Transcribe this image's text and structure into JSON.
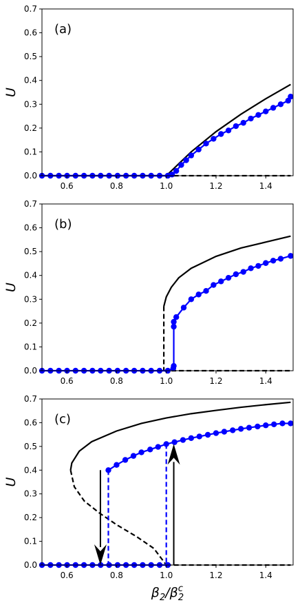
{
  "chart_data": [
    {
      "type": "line",
      "panel_label": "(a)",
      "xlim": [
        0.5,
        1.51
      ],
      "ylim": [
        0,
        0.7
      ],
      "xticks": [
        "0.6",
        "0.8",
        "1.0",
        "1.2",
        "1.4"
      ],
      "yticks": [
        "0.0",
        "0.1",
        "0.2",
        "0.3",
        "0.4",
        "0.5",
        "0.6",
        "0.7"
      ],
      "ylabel": "U",
      "series": [
        {
          "style": "solid",
          "color": "#000000",
          "points": [
            [
              0.5,
              0.0
            ],
            [
              1.0,
              0.0
            ],
            [
              1.05,
              0.05
            ],
            [
              1.1,
              0.1
            ],
            [
              1.2,
              0.185
            ],
            [
              1.3,
              0.258
            ],
            [
              1.4,
              0.323
            ],
            [
              1.5,
              0.383
            ]
          ]
        },
        {
          "style": "dashed",
          "color": "#000000",
          "points": [
            [
              1.0,
              0.0
            ],
            [
              1.5,
              0.0
            ]
          ]
        },
        {
          "style": "markers",
          "color": "#0000ff",
          "points": [
            [
              0.5,
              0.0
            ],
            [
              0.534,
              0.0
            ],
            [
              0.568,
              0.0
            ],
            [
              0.601,
              0.0
            ],
            [
              0.635,
              0.0
            ],
            [
              0.669,
              0.0
            ],
            [
              0.703,
              0.0
            ],
            [
              0.736,
              0.0
            ],
            [
              0.77,
              0.0
            ],
            [
              0.804,
              0.0
            ],
            [
              0.838,
              0.0
            ],
            [
              0.871,
              0.0
            ],
            [
              0.905,
              0.0
            ],
            [
              0.939,
              0.0
            ],
            [
              0.973,
              0.0
            ],
            [
              1.006,
              0.0
            ],
            [
              1.023,
              0.005
            ],
            [
              1.04,
              0.02
            ],
            [
              1.06,
              0.045
            ],
            [
              1.08,
              0.065
            ],
            [
              1.1,
              0.085
            ],
            [
              1.13,
              0.11
            ],
            [
              1.16,
              0.135
            ],
            [
              1.19,
              0.155
            ],
            [
              1.22,
              0.175
            ],
            [
              1.25,
              0.19
            ],
            [
              1.28,
              0.208
            ],
            [
              1.31,
              0.222
            ],
            [
              1.34,
              0.24
            ],
            [
              1.37,
              0.255
            ],
            [
              1.4,
              0.27
            ],
            [
              1.43,
              0.285
            ],
            [
              1.46,
              0.3
            ],
            [
              1.49,
              0.315
            ],
            [
              1.5,
              0.332
            ]
          ]
        }
      ]
    },
    {
      "type": "line",
      "panel_label": "(b)",
      "xlim": [
        0.5,
        1.51
      ],
      "ylim": [
        0,
        0.7
      ],
      "xticks": [
        "0.6",
        "0.8",
        "1.0",
        "1.2",
        "1.4"
      ],
      "yticks": [
        "0.0",
        "0.1",
        "0.2",
        "0.3",
        "0.4",
        "0.5",
        "0.6",
        "0.7"
      ],
      "ylabel": "U",
      "series": [
        {
          "style": "solid",
          "color": "#000000",
          "points": [
            [
              0.99,
              0.27
            ],
            [
              1.0,
              0.31
            ],
            [
              1.02,
              0.35
            ],
            [
              1.05,
              0.39
            ],
            [
              1.1,
              0.43
            ],
            [
              1.2,
              0.48
            ],
            [
              1.3,
              0.515
            ],
            [
              1.4,
              0.54
            ],
            [
              1.5,
              0.565
            ]
          ]
        },
        {
          "style": "dashed",
          "color": "#000000",
          "points": [
            [
              0.99,
              0.27
            ],
            [
              0.99,
              0.0
            ]
          ]
        },
        {
          "style": "dashed",
          "color": "#000000",
          "points": [
            [
              0.99,
              0.0
            ],
            [
              1.5,
              0.0
            ]
          ]
        },
        {
          "style": "markers",
          "color": "#0000ff",
          "points": [
            [
              0.5,
              0.0
            ],
            [
              0.534,
              0.0
            ],
            [
              0.568,
              0.0
            ],
            [
              0.601,
              0.0
            ],
            [
              0.635,
              0.0
            ],
            [
              0.669,
              0.0
            ],
            [
              0.703,
              0.0
            ],
            [
              0.736,
              0.0
            ],
            [
              0.77,
              0.0
            ],
            [
              0.804,
              0.0
            ],
            [
              0.838,
              0.0
            ],
            [
              0.871,
              0.0
            ],
            [
              0.905,
              0.0
            ],
            [
              0.939,
              0.0
            ],
            [
              0.973,
              0.0
            ],
            [
              1.006,
              0.0
            ],
            [
              1.028,
              0.01
            ],
            [
              1.03,
              0.02
            ],
            [
              1.03,
              0.185
            ],
            [
              1.03,
              0.205
            ],
            [
              1.04,
              0.225
            ],
            [
              1.07,
              0.265
            ],
            [
              1.1,
              0.3
            ],
            [
              1.13,
              0.32
            ],
            [
              1.16,
              0.335
            ],
            [
              1.19,
              0.36
            ],
            [
              1.22,
              0.375
            ],
            [
              1.25,
              0.39
            ],
            [
              1.28,
              0.405
            ],
            [
              1.31,
              0.415
            ],
            [
              1.34,
              0.43
            ],
            [
              1.37,
              0.44
            ],
            [
              1.4,
              0.452
            ],
            [
              1.43,
              0.462
            ],
            [
              1.46,
              0.47
            ],
            [
              1.5,
              0.482
            ]
          ]
        }
      ]
    },
    {
      "type": "line",
      "panel_label": "(c)",
      "xlim": [
        0.5,
        1.51
      ],
      "ylim": [
        0,
        0.7
      ],
      "xticks": [
        "0.6",
        "0.8",
        "1.0",
        "1.2",
        "1.4"
      ],
      "yticks": [
        "0.0",
        "0.1",
        "0.2",
        "0.3",
        "0.4",
        "0.5",
        "0.6",
        "0.7"
      ],
      "ylabel": "U",
      "xlabel": "β_2/β_2^c",
      "series": [
        {
          "style": "solid",
          "color": "#000000",
          "points": [
            [
              0.615,
              0.4
            ],
            [
              0.62,
              0.43
            ],
            [
              0.65,
              0.48
            ],
            [
              0.7,
              0.52
            ],
            [
              0.8,
              0.565
            ],
            [
              0.9,
              0.597
            ],
            [
              1.0,
              0.62
            ],
            [
              1.1,
              0.638
            ],
            [
              1.2,
              0.652
            ],
            [
              1.3,
              0.665
            ],
            [
              1.4,
              0.676
            ],
            [
              1.5,
              0.686
            ]
          ]
        },
        {
          "style": "dashed",
          "color": "#000000",
          "points": [
            [
              0.615,
              0.4
            ],
            [
              0.63,
              0.33
            ],
            [
              0.67,
              0.27
            ],
            [
              0.73,
              0.22
            ],
            [
              0.8,
              0.17
            ],
            [
              0.88,
              0.12
            ],
            [
              0.95,
              0.07
            ],
            [
              1.0,
              0.0
            ]
          ]
        },
        {
          "style": "dashed",
          "color": "#000000",
          "points": [
            [
              1.0,
              0.0
            ],
            [
              1.5,
              0.0
            ]
          ]
        },
        {
          "style": "dashed",
          "color": "#0000ff",
          "points": [
            [
              0.767,
              0.4
            ],
            [
              0.767,
              0.0
            ]
          ]
        },
        {
          "style": "dashed",
          "color": "#0000ff",
          "points": [
            [
              1.0,
              0.51
            ],
            [
              1.0,
              0.0
            ]
          ]
        },
        {
          "style": "markers",
          "color": "#0000ff",
          "points": [
            [
              0.5,
              0.0
            ],
            [
              0.534,
              0.0
            ],
            [
              0.568,
              0.0
            ],
            [
              0.601,
              0.0
            ],
            [
              0.635,
              0.0
            ],
            [
              0.669,
              0.0
            ],
            [
              0.703,
              0.0
            ],
            [
              0.736,
              0.0
            ],
            [
              0.77,
              0.0
            ],
            [
              0.804,
              0.0
            ],
            [
              0.838,
              0.0
            ],
            [
              0.871,
              0.0
            ],
            [
              0.905,
              0.0
            ],
            [
              0.939,
              0.0
            ],
            [
              0.973,
              0.0
            ],
            [
              1.006,
              0.0
            ],
            [
              0.767,
              0.4
            ],
            [
              0.8,
              0.422
            ],
            [
              0.835,
              0.443
            ],
            [
              0.868,
              0.46
            ],
            [
              0.9,
              0.475
            ],
            [
              0.935,
              0.487
            ],
            [
              0.967,
              0.498
            ],
            [
              1.0,
              0.51
            ],
            [
              1.033,
              0.518
            ],
            [
              1.067,
              0.527
            ],
            [
              1.1,
              0.535
            ],
            [
              1.133,
              0.542
            ],
            [
              1.167,
              0.549
            ],
            [
              1.2,
              0.556
            ],
            [
              1.233,
              0.562
            ],
            [
              1.267,
              0.568
            ],
            [
              1.3,
              0.574
            ],
            [
              1.333,
              0.579
            ],
            [
              1.367,
              0.584
            ],
            [
              1.4,
              0.589
            ],
            [
              1.433,
              0.593
            ],
            [
              1.467,
              0.597
            ],
            [
              1.5,
              0.597
            ]
          ]
        }
      ],
      "arrows": [
        {
          "direction": "down",
          "x": 0.735,
          "y_from": 0.4,
          "y_to": 0.0
        },
        {
          "direction": "up",
          "x": 1.03,
          "y_from": 0.0,
          "y_to": 0.51
        }
      ]
    }
  ]
}
